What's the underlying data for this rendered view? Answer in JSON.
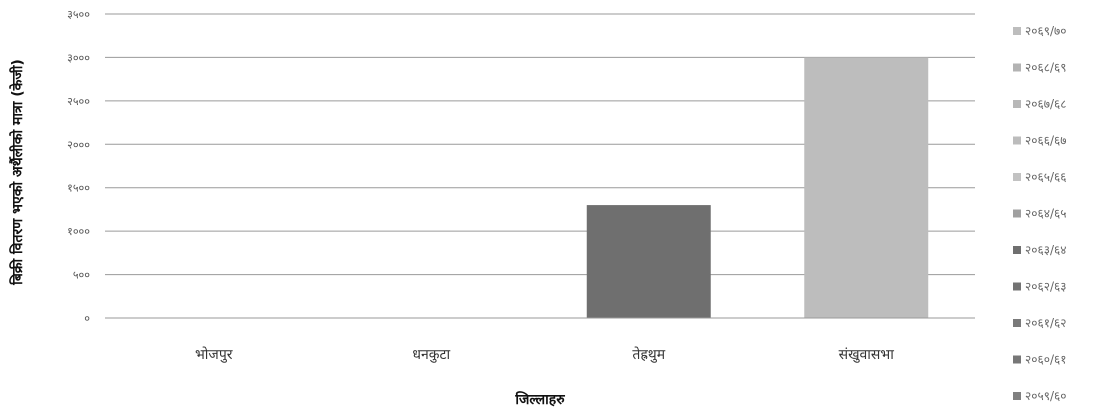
{
  "chart_data": {
    "type": "bar",
    "title": "",
    "xlabel": "जिल्लाहरु",
    "ylabel": "बिक्री वितरण भएको अर्थैलीको मात्रा (केजी)",
    "ylim": [
      0,
      3500
    ],
    "y_ticks": [
      0,
      500,
      1000,
      1500,
      2000,
      2500,
      3000,
      3500
    ],
    "y_tick_labels": [
      "०",
      "५००",
      "१०००",
      "१५००",
      "२०००",
      "२५००",
      "३०००",
      "३५००"
    ],
    "categories": [
      "भोजपुर",
      "धनकुटा",
      "तेह्रथुम",
      "संखुवासभा"
    ],
    "grid": true,
    "legend_position": "right",
    "series": [
      {
        "name": "२०६९/७०",
        "color": "#bdbdbd",
        "values": [
          0,
          0,
          0,
          3000
        ]
      },
      {
        "name": "२०६८/६९",
        "color": "#b3b3b3",
        "values": [
          0,
          0,
          0,
          0
        ]
      },
      {
        "name": "२०६७/६८",
        "color": "#b8b8b8",
        "values": [
          0,
          0,
          0,
          0
        ]
      },
      {
        "name": "२०६६/६७",
        "color": "#bcbcbc",
        "values": [
          0,
          0,
          0,
          0
        ]
      },
      {
        "name": "२०६५/६६",
        "color": "#c2c2c2",
        "values": [
          0,
          0,
          0,
          0
        ]
      },
      {
        "name": "२०६४/६५",
        "color": "#a0a0a0",
        "values": [
          0,
          0,
          0,
          0
        ]
      },
      {
        "name": "२०६३/६४",
        "color": "#6f6f6f",
        "values": [
          0,
          0,
          1300,
          0
        ]
      },
      {
        "name": "२०६२/६३",
        "color": "#737373",
        "values": [
          0,
          0,
          0,
          0
        ]
      },
      {
        "name": "२०६१/६२",
        "color": "#7a7a7a",
        "values": [
          0,
          0,
          0,
          0
        ]
      },
      {
        "name": "२०६०/६१",
        "color": "#777777",
        "values": [
          0,
          0,
          0,
          0
        ]
      },
      {
        "name": "२०५९/६०",
        "color": "#808080",
        "values": [
          0,
          0,
          0,
          0
        ]
      }
    ]
  }
}
